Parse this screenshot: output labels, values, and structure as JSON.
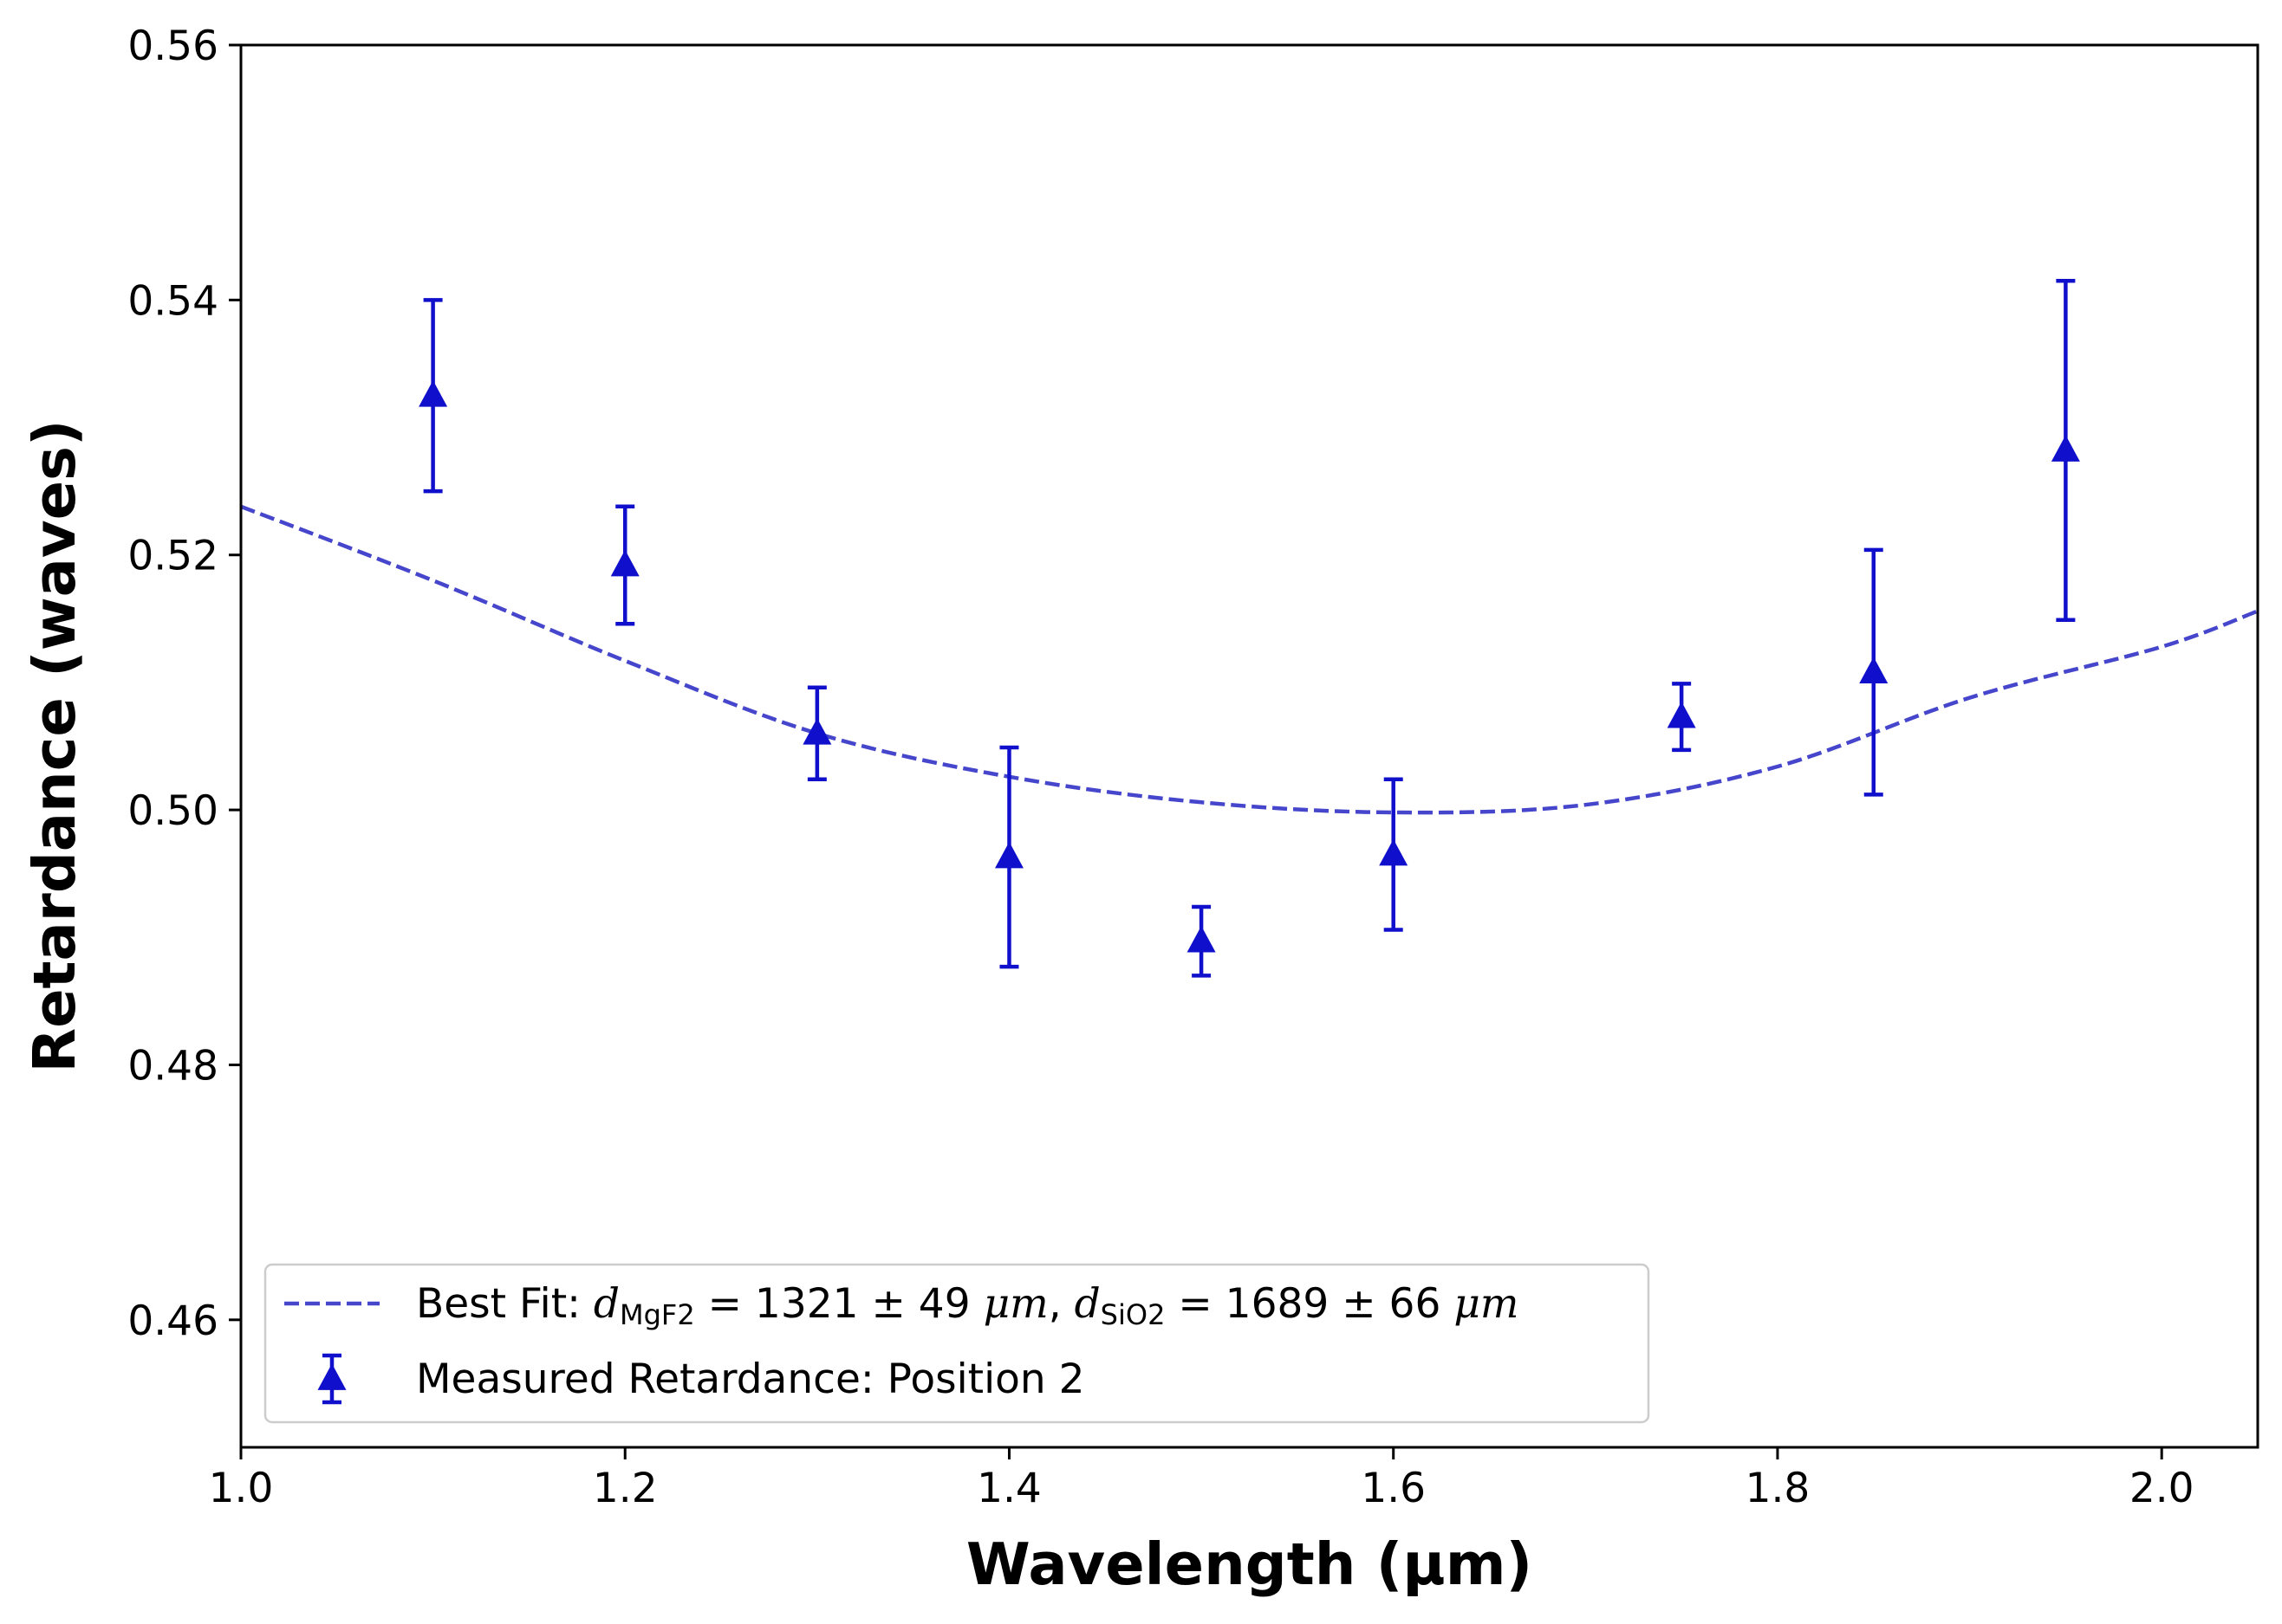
{
  "chart_data": {
    "type": "scatter",
    "xlabel": "Wavelength (μm)",
    "ylabel": "Retardance (waves)",
    "xlim": [
      1.0,
      2.05
    ],
    "ylim": [
      0.45,
      0.56
    ],
    "xticks": [
      1.0,
      1.2,
      1.4,
      1.6,
      1.8,
      2.0
    ],
    "xtick_labels": [
      "1.0",
      "1.2",
      "1.4",
      "1.6",
      "1.8",
      "2.0"
    ],
    "yticks": [
      0.46,
      0.48,
      0.5,
      0.52,
      0.54,
      0.56
    ],
    "ytick_labels": [
      "0.46",
      "0.48",
      "0.50",
      "0.52",
      "0.54",
      "0.56"
    ],
    "grid": false,
    "legend_position": "lower-left",
    "series": [
      {
        "name": "Measured Retardance: Position 2",
        "kind": "errorbar",
        "marker": "triangle-up",
        "color": "#1010cc",
        "x": [
          1.1,
          1.2,
          1.3,
          1.4,
          1.5,
          1.6,
          1.75,
          1.85,
          1.95
        ],
        "y": [
          0.5325,
          0.5192,
          0.506,
          0.4963,
          0.4897,
          0.4965,
          0.5073,
          0.5108,
          0.5282
        ],
        "yerr": [
          0.0075,
          0.0046,
          0.0036,
          0.0086,
          0.0027,
          0.0059,
          0.0026,
          0.0096,
          0.0133
        ]
      },
      {
        "name": "Best Fit",
        "kind": "line",
        "style": "dashed",
        "color": "#4646cc",
        "x": [
          1.0,
          1.1,
          1.2,
          1.3,
          1.4,
          1.5,
          1.6,
          1.7,
          1.8,
          1.9,
          2.0,
          2.05
        ],
        "y": [
          0.5238,
          0.518,
          0.5117,
          0.506,
          0.5026,
          0.5006,
          0.4998,
          0.5004,
          0.5034,
          0.5088,
          0.5128,
          0.5156
        ]
      }
    ],
    "legend": {
      "fit_label_prefix": "Best Fit: ",
      "fit_d1_symbol": "d",
      "fit_d1_sub": "MgF2",
      "fit_d1_value": " = 1321 ± 49 ",
      "fit_unit": "μm",
      "fit_sep": ", ",
      "fit_d2_symbol": "d",
      "fit_d2_sub": "SiO2",
      "fit_d2_value": " = 1689 ± 66 ",
      "measured_label": "Measured Retardance: Position 2"
    }
  }
}
